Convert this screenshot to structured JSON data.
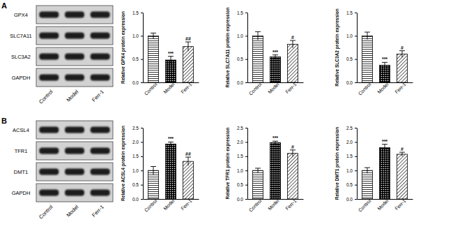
{
  "chart_data": [
    {
      "type": "bar",
      "y_label": "Relative GPX4 protein expression",
      "categories": [
        "Control",
        "Model",
        "Ferr-1"
      ],
      "values": [
        1.0,
        0.48,
        0.77
      ],
      "errors": [
        0.06,
        0.08,
        0.1
      ],
      "color": "#000000",
      "ylim": [
        0,
        1.5
      ],
      "yticks": [
        {
          "value": 0,
          "label": "0.0"
        },
        0.5,
        {
          "value": 1,
          "label": "1.0"
        },
        1.5
      ],
      "grid": false,
      "annotations": [
        {
          "category": "Model",
          "text": "***"
        },
        {
          "category": "Ferr-1",
          "text": "##"
        }
      ]
    },
    {
      "type": "bar",
      "y_label": "Relative SLC7A11 protein expression",
      "categories": [
        "Control",
        "Model",
        "Ferr-1"
      ],
      "values": [
        1.0,
        0.55,
        0.82
      ],
      "errors": [
        0.09,
        0.04,
        0.08
      ],
      "color": "#000000",
      "ylim": [
        0,
        1.5
      ],
      "yticks": [
        {
          "value": 0,
          "label": "0.0"
        },
        0.5,
        {
          "value": 1,
          "label": "1.0"
        },
        1.5
      ],
      "grid": false,
      "annotations": [
        {
          "category": "Model",
          "text": "***"
        },
        {
          "category": "Ferr-1",
          "text": "#"
        }
      ]
    },
    {
      "type": "bar",
      "y_label": "Relative SLC3A2 protein expression",
      "categories": [
        "Control",
        "Model",
        "Ferr-1"
      ],
      "values": [
        1.0,
        0.37,
        0.61
      ],
      "errors": [
        0.08,
        0.06,
        0.07
      ],
      "color": "#000000",
      "ylim": [
        0,
        1.5
      ],
      "yticks": [
        {
          "value": 0,
          "label": "0.0"
        },
        0.5,
        {
          "value": 1,
          "label": "1.0"
        },
        1.5
      ],
      "grid": false,
      "annotations": [
        {
          "category": "Model",
          "text": "***"
        },
        {
          "category": "Ferr-1",
          "text": "#"
        }
      ]
    },
    {
      "type": "bar",
      "y_label": "Relative ACSL4 protein expression",
      "categories": [
        "Control",
        "Model",
        "Ferr-1"
      ],
      "values": [
        1.0,
        1.93,
        1.32
      ],
      "errors": [
        0.14,
        0.07,
        0.15
      ],
      "color": "#000000",
      "ylim": [
        0,
        2.5
      ],
      "yticks": [
        {
          "value": 0,
          "label": "0.0"
        },
        0.5,
        {
          "value": 1,
          "label": "1.0"
        },
        1.5,
        {
          "value": 2,
          "label": "2.0"
        },
        2.5
      ],
      "grid": false,
      "annotations": [
        {
          "category": "Model",
          "text": "***"
        },
        {
          "category": "Ferr-1",
          "text": "##"
        }
      ]
    },
    {
      "type": "bar",
      "y_label": "Relative TFR1 protein expression",
      "categories": [
        "Control",
        "Model",
        "Ferr-1"
      ],
      "values": [
        1.0,
        1.98,
        1.6
      ],
      "errors": [
        0.08,
        0.05,
        0.12
      ],
      "color": "#000000",
      "ylim": [
        0,
        2.5
      ],
      "yticks": [
        {
          "value": 0,
          "label": "0.0"
        },
        0.5,
        {
          "value": 1,
          "label": "1.0"
        },
        1.5,
        {
          "value": 2,
          "label": "2.0"
        },
        2.5
      ],
      "grid": false,
      "annotations": [
        {
          "category": "Model",
          "text": "***"
        },
        {
          "category": "Ferr-1",
          "text": "#"
        }
      ]
    },
    {
      "type": "bar",
      "y_label": "Relative DMT1 protein expression",
      "categories": [
        "Control",
        "Model",
        "Ferr-1"
      ],
      "values": [
        1.0,
        1.8,
        1.57
      ],
      "errors": [
        0.1,
        0.12,
        0.07
      ],
      "color": "#000000",
      "ylim": [
        0,
        2.5
      ],
      "yticks": [
        {
          "value": 0,
          "label": "0.0"
        },
        0.5,
        {
          "value": 1,
          "label": "1.0"
        },
        1.5,
        {
          "value": 2,
          "label": "2.0"
        },
        2.5
      ],
      "grid": false,
      "annotations": [
        {
          "category": "Model",
          "text": "***"
        },
        {
          "category": "Ferr-1",
          "text": "#"
        }
      ]
    }
  ],
  "blots": [
    {
      "label": "A",
      "proteins": [
        "GPX4",
        "SLC7A11",
        "SLC3A2",
        "GAPDH"
      ],
      "lanes": [
        "Control",
        "Model",
        "Ferr-1"
      ]
    },
    {
      "label": "B",
      "proteins": [
        "ACSL4",
        "TFR1",
        "DMT1",
        "GAPDH"
      ],
      "lanes": [
        "Control",
        "Model",
        "Ferr-1"
      ]
    }
  ]
}
